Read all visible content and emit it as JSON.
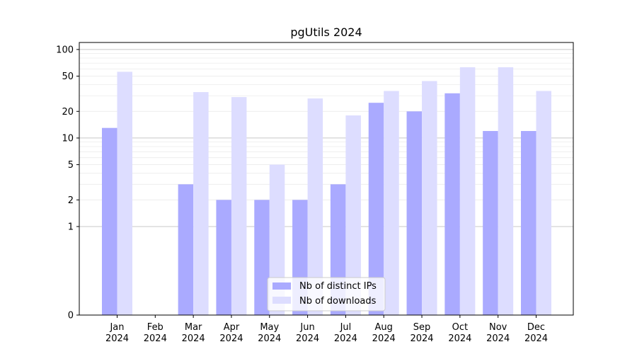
{
  "chart_data": {
    "type": "bar",
    "title": "pgUtils 2024",
    "xlabel": "",
    "ylabel": "",
    "y_scale": "symlog",
    "ylim": [
      0,
      120
    ],
    "y_ticks": [
      0,
      1,
      2,
      5,
      10,
      20,
      50,
      100
    ],
    "categories": [
      "Jan\n2024",
      "Feb\n2024",
      "Mar\n2024",
      "Apr\n2024",
      "May\n2024",
      "Jun\n2024",
      "Jul\n2024",
      "Aug\n2024",
      "Sep\n2024",
      "Oct\n2024",
      "Nov\n2024",
      "Dec\n2024"
    ],
    "series": [
      {
        "name": "Nb of distinct IPs",
        "color": "#aaaaff",
        "values": [
          13,
          0,
          3,
          2,
          2,
          2,
          3,
          25,
          20,
          32,
          12,
          12
        ]
      },
      {
        "name": "Nb of downloads",
        "color": "#ddddff",
        "values": [
          56,
          0,
          33,
          29,
          5,
          28,
          18,
          34,
          44,
          63,
          63,
          34
        ]
      }
    ],
    "grid": true,
    "legend_position": "lower-center"
  }
}
